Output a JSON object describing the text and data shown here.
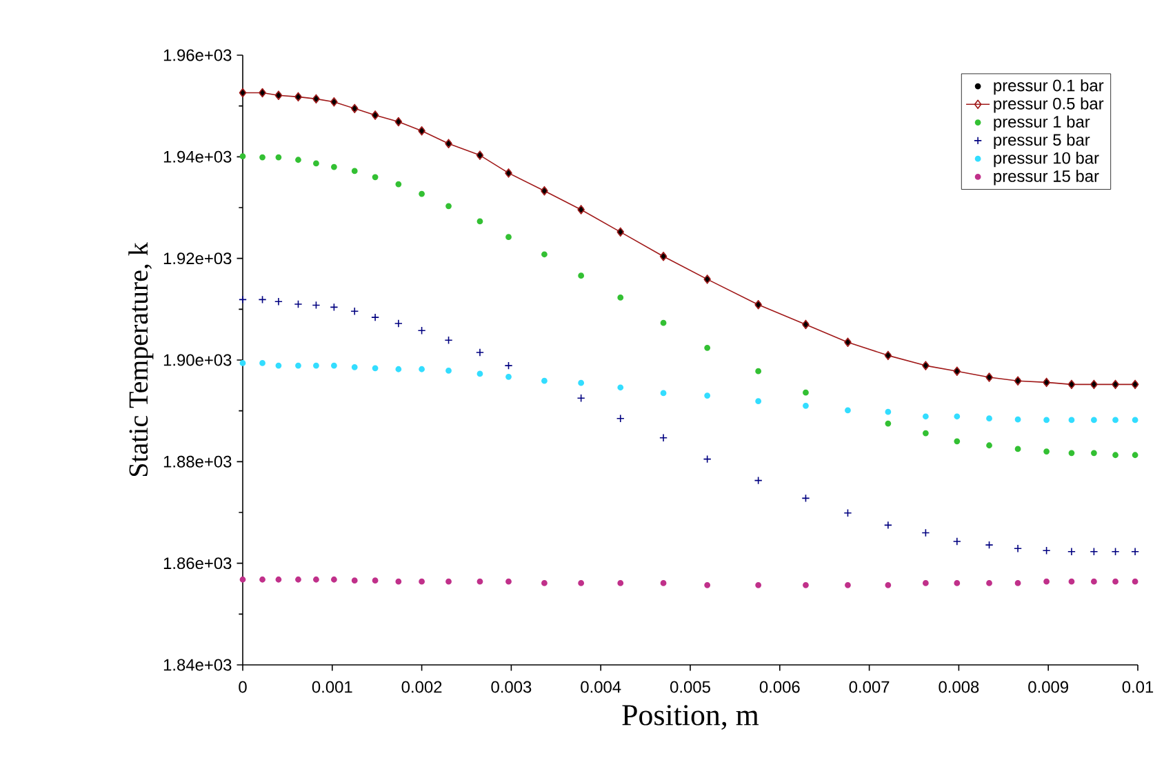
{
  "chart_data": {
    "type": "scatter",
    "xlabel": "Position, m",
    "ylabel": "Static Temperature, k",
    "x": [
      0,
      0.00022,
      0.0004,
      0.00062,
      0.00082,
      0.00102,
      0.00125,
      0.00148,
      0.00174,
      0.002,
      0.0023,
      0.00265,
      0.00297,
      0.00337,
      0.00378,
      0.00422,
      0.0047,
      0.00519,
      0.00576,
      0.00629,
      0.00676,
      0.00721,
      0.00763,
      0.00798,
      0.00834,
      0.00866,
      0.00898,
      0.00926,
      0.00951,
      0.00975,
      0.00997
    ],
    "series": [
      {
        "name": "pressur 0.1 bar",
        "color": "#000000",
        "marker": "circle",
        "values": [
          1952.6,
          1952.6,
          1952.1,
          1951.8,
          1951.4,
          1950.8,
          1949.5,
          1948.2,
          1946.9,
          1945.1,
          1942.6,
          1940.3,
          1936.8,
          1933.3,
          1929.6,
          1925.2,
          1920.4,
          1915.9,
          1910.9,
          1907.0,
          1903.5,
          1900.9,
          1898.9,
          1897.8,
          1896.6,
          1895.9,
          1895.6,
          1895.2,
          1895.2,
          1895.2,
          1895.2
        ]
      },
      {
        "name": "pressur 0.5 bar",
        "type": "line",
        "color": "#a01818",
        "marker": "diamond",
        "line_style": "solid",
        "values": [
          1952.6,
          1952.6,
          1952.1,
          1951.8,
          1951.4,
          1950.8,
          1949.5,
          1948.2,
          1946.9,
          1945.1,
          1942.6,
          1940.3,
          1936.8,
          1933.3,
          1929.6,
          1925.2,
          1920.4,
          1915.9,
          1910.9,
          1907.0,
          1903.5,
          1900.9,
          1898.9,
          1897.8,
          1896.6,
          1895.9,
          1895.6,
          1895.2,
          1895.2,
          1895.2,
          1895.2
        ]
      },
      {
        "name": "pressur 1 bar",
        "color": "#33c033",
        "marker": "circle",
        "values": [
          1940.1,
          1939.9,
          1939.9,
          1939.4,
          1938.7,
          1938.0,
          1937.2,
          1936.0,
          1934.6,
          1932.7,
          1930.3,
          1927.3,
          1924.2,
          1920.8,
          1916.6,
          1912.3,
          1907.3,
          1902.4,
          1897.8,
          1893.6,
          null,
          1887.5,
          1885.6,
          1884.0,
          1883.2,
          1882.5,
          1882.0,
          1881.7,
          1881.7,
          1881.3,
          1881.3
        ]
      },
      {
        "name": "pressur 5 bar",
        "color": "#000080",
        "marker": "cross",
        "values": [
          1911.9,
          1911.9,
          1911.5,
          1911.0,
          1910.8,
          1910.4,
          1909.6,
          1908.4,
          1907.2,
          1905.8,
          1903.9,
          1901.5,
          1898.9,
          null,
          1892.5,
          1888.5,
          1884.7,
          1880.5,
          1876.3,
          1872.8,
          1869.9,
          1867.5,
          1866.0,
          1864.3,
          1863.6,
          1862.9,
          1862.5,
          1862.3,
          1862.3,
          1862.3,
          1862.3
        ]
      },
      {
        "name": "pressur 10 bar",
        "color": "#33ddff",
        "marker": "circle",
        "values": [
          1899.4,
          1899.4,
          1898.9,
          1898.9,
          1898.9,
          1898.9,
          1898.6,
          1898.4,
          1898.2,
          1898.2,
          1897.9,
          1897.3,
          1896.7,
          1895.9,
          1895.5,
          1894.6,
          1893.5,
          1893.0,
          1891.9,
          1891.0,
          1890.1,
          1889.8,
          1888.9,
          1888.9,
          1888.5,
          1888.3,
          1888.2,
          1888.2,
          1888.2,
          1888.2,
          1888.2
        ]
      },
      {
        "name": "pressur 15 bar",
        "color": "#c0308a",
        "marker": "circle",
        "values": [
          1856.8,
          1856.8,
          1856.8,
          1856.8,
          1856.8,
          1856.8,
          1856.6,
          1856.6,
          1856.4,
          1856.4,
          1856.4,
          1856.4,
          1856.4,
          1856.1,
          1856.1,
          1856.1,
          1856.1,
          1855.7,
          1855.7,
          1855.7,
          1855.7,
          1855.7,
          1856.1,
          1856.1,
          1856.1,
          1856.1,
          1856.4,
          1856.4,
          1856.4,
          1856.4,
          1856.4
        ]
      }
    ],
    "xlim": [
      0,
      0.01
    ],
    "xticks": [
      0,
      0.001,
      0.002,
      0.003,
      0.004,
      0.005,
      0.006,
      0.007,
      0.008,
      0.009,
      0.01
    ],
    "ylim": [
      1840,
      1960
    ],
    "yticks": [
      {
        "value": 1840,
        "label": "1.84e+03"
      },
      {
        "value": 1860,
        "label": "1.86e+03"
      },
      {
        "value": 1880,
        "label": "1.88e+03"
      },
      {
        "value": 1900,
        "label": "1.90e+03"
      },
      {
        "value": 1920,
        "label": "1.92e+03"
      },
      {
        "value": 1940,
        "label": "1.94e+03"
      },
      {
        "value": 1960,
        "label": "1.96e+03"
      }
    ],
    "grid": false,
    "legend": "top right"
  }
}
